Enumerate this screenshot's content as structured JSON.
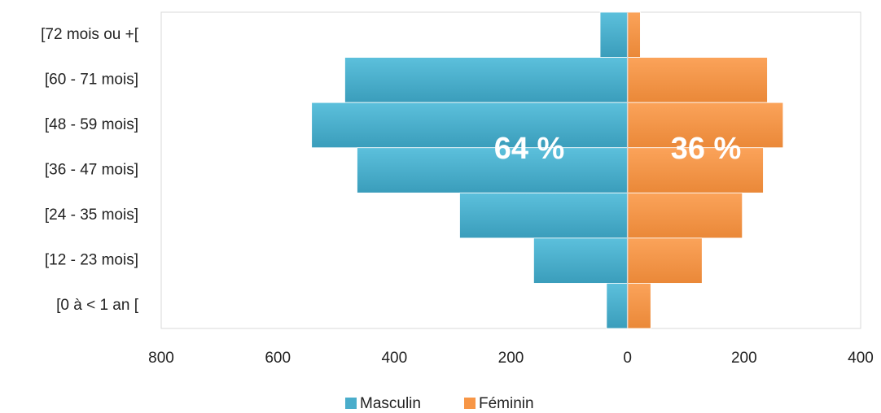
{
  "chart_data": {
    "type": "pyramid",
    "categories": [
      "[72 mois ou +[",
      "[60 - 71 mois]",
      "[48 - 59 mois]",
      "[36 - 47 mois]",
      "[24 - 35 mois]",
      "[12 - 23 mois]",
      "[0 à < 1 an ["
    ],
    "series": [
      {
        "name": "Masculin",
        "color": "#4aadcb",
        "values": [
          47,
          485,
          542,
          464,
          288,
          161,
          36
        ]
      },
      {
        "name": "Féminin",
        "color": "#f79646",
        "values": [
          22,
          240,
          267,
          233,
          197,
          128,
          40
        ]
      }
    ],
    "annotations": [
      "64 %",
      "36 %"
    ],
    "xlim": [
      -800,
      400
    ],
    "xticks": [
      {
        "value": -800,
        "label": "800"
      },
      {
        "value": -600,
        "label": "600"
      },
      {
        "value": -400,
        "label": "400"
      },
      {
        "value": -200,
        "label": "200"
      },
      0,
      200,
      400
    ],
    "legend": "bottom"
  }
}
